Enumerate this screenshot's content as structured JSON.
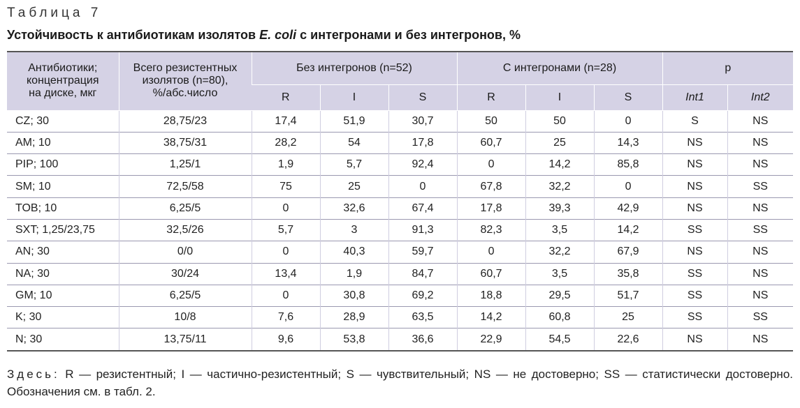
{
  "label": "Таблица 7",
  "caption": {
    "before": "Устойчивость к антибиотикам изолятов ",
    "italic": "E. coli",
    "after": " с интегронами и без интегронов, %"
  },
  "headers": {
    "col1": [
      "Антибиотики;",
      "концентрация",
      "на диске, мкг"
    ],
    "col2": [
      "Всего резистентных",
      "изолятов (n=80),",
      "%/абс.число"
    ],
    "group1": "Без интегронов (n=52)",
    "group2": "С интегронами (n=28)",
    "group3": "p",
    "sub": [
      "R",
      "I",
      "S",
      "R",
      "I",
      "S",
      "Int1",
      "Int2"
    ]
  },
  "rows": [
    [
      "CZ; 30",
      "28,75/23",
      "17,4",
      "51,9",
      "30,7",
      "50",
      "50",
      "0",
      "S",
      "NS"
    ],
    [
      "AM; 10",
      "38,75/31",
      "28,2",
      "54",
      "17,8",
      "60,7",
      "25",
      "14,3",
      "NS",
      "NS"
    ],
    [
      "PIP; 100",
      "1,25/1",
      "1,9",
      "5,7",
      "92,4",
      "0",
      "14,2",
      "85,8",
      "NS",
      "NS"
    ],
    [
      "SM; 10",
      "72,5/58",
      "75",
      "25",
      "0",
      "67,8",
      "32,2",
      "0",
      "NS",
      "SS"
    ],
    [
      "TOB; 10",
      "6,25/5",
      "0",
      "32,6",
      "67,4",
      "17,8",
      "39,3",
      "42,9",
      "NS",
      "NS"
    ],
    [
      "SXT; 1,25/23,75",
      "32,5/26",
      "5,7",
      "3",
      "91,3",
      "82,3",
      "3,5",
      "14,2",
      "SS",
      "SS"
    ],
    [
      "AN; 30",
      "0/0",
      "0",
      "40,3",
      "59,7",
      "0",
      "32,2",
      "67,9",
      "NS",
      "NS"
    ],
    [
      "NA; 30",
      "30/24",
      "13,4",
      "1,9",
      "84,7",
      "60,7",
      "3,5",
      "35,8",
      "SS",
      "NS"
    ],
    [
      "GM; 10",
      "6,25/5",
      "0",
      "30,8",
      "69,2",
      "18,8",
      "29,5",
      "51,7",
      "SS",
      "NS"
    ],
    [
      "K; 30",
      "10/8",
      "7,6",
      "28,9",
      "63,5",
      "14,2",
      "60,8",
      "25",
      "SS",
      "SS"
    ],
    [
      "N; 30",
      "13,75/11",
      "9,6",
      "53,8",
      "36,6",
      "22,9",
      "54,5",
      "22,6",
      "NS",
      "NS"
    ]
  ],
  "footnote": {
    "lead": "Здесь:",
    "text": " R — резистентный; I — частично-резистентный; S — чувствительный; NS — не достоверно; SS — статистически достоверно. Обозначения см. в табл. 2."
  }
}
